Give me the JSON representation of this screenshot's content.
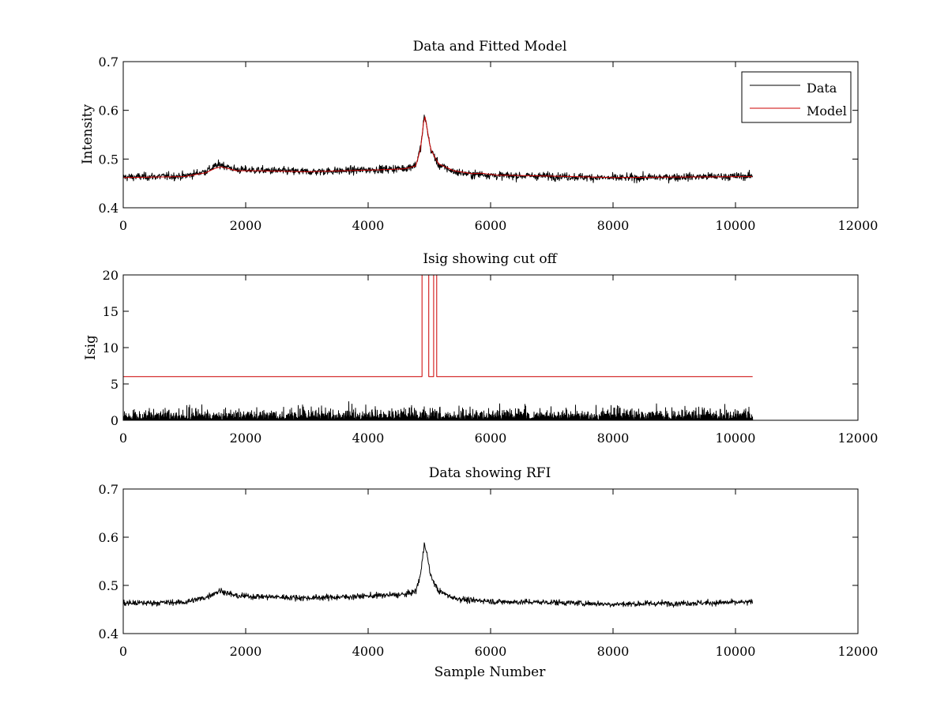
{
  "colors": {
    "data": "#000000",
    "model": "#cc0000",
    "threshold": "#cc0000",
    "background": "#ffffff"
  },
  "chart_data": [
    {
      "type": "line",
      "title": "Data and Fitted Model",
      "xlabel": "",
      "ylabel": "Intensity",
      "xlim": [
        0,
        12000
      ],
      "ylim": [
        0.4,
        0.7
      ],
      "xticks": [
        "0",
        "2000",
        "4000",
        "6000",
        "8000",
        "10000",
        "12000"
      ],
      "yticks": [
        "0.4",
        "0.5",
        "0.6",
        "0.7"
      ],
      "legend": {
        "placement": "top-right",
        "entries": [
          "Data",
          "Model"
        ]
      },
      "series": [
        {
          "name": "Data",
          "color": "#000000",
          "noise": 0.004,
          "x": [
            0,
            1000,
            1350,
            1500,
            1600,
            1700,
            1850,
            2200,
            3000,
            3600,
            4200,
            4600,
            4780,
            4860,
            4920,
            4960,
            5020,
            5150,
            5400,
            5700,
            5850,
            6100,
            7000,
            8000,
            9000,
            10280
          ],
          "values": [
            0.463,
            0.465,
            0.475,
            0.485,
            0.489,
            0.484,
            0.478,
            0.477,
            0.474,
            0.476,
            0.479,
            0.481,
            0.488,
            0.525,
            0.59,
            0.565,
            0.52,
            0.488,
            0.474,
            0.468,
            0.469,
            0.466,
            0.465,
            0.461,
            0.463,
            0.465
          ]
        },
        {
          "name": "Model",
          "color": "#cc0000",
          "noise": 0,
          "x": [
            0,
            1000,
            1350,
            1500,
            1600,
            1700,
            1850,
            2200,
            3000,
            3600,
            4200,
            4600,
            4780,
            4860,
            4920,
            4960,
            5020,
            5150,
            5400,
            5700,
            5850,
            6100,
            7000,
            8000,
            9000,
            10280
          ],
          "values": [
            0.462,
            0.464,
            0.472,
            0.481,
            0.484,
            0.481,
            0.476,
            0.476,
            0.474,
            0.476,
            0.478,
            0.48,
            0.486,
            0.523,
            0.593,
            0.565,
            0.52,
            0.49,
            0.476,
            0.47,
            0.471,
            0.467,
            0.465,
            0.462,
            0.463,
            0.464
          ]
        }
      ]
    },
    {
      "type": "line",
      "title": "Isig showing cut off",
      "xlabel": "",
      "ylabel": "Isig",
      "xlim": [
        0,
        12000
      ],
      "ylim": [
        0,
        20
      ],
      "xticks": [
        "0",
        "2000",
        "4000",
        "6000",
        "8000",
        "10000",
        "12000"
      ],
      "yticks": [
        "0",
        "5",
        "10",
        "15",
        "20"
      ],
      "series": [
        {
          "name": "",
          "kind": "abs-noise",
          "color": "#000000",
          "x_range": [
            0,
            10280
          ],
          "scale": 0.8,
          "max": 3.6
        },
        {
          "name": "",
          "kind": "step",
          "color": "#cc0000",
          "x": [
            0,
            4880,
            4880,
            4990,
            4990,
            5070,
            5070,
            5120,
            5120,
            10280
          ],
          "values": [
            6,
            6,
            20,
            20,
            6,
            6,
            20,
            20,
            6,
            6
          ]
        }
      ]
    },
    {
      "type": "line",
      "title": "Data showing RFI",
      "xlabel": "Sample Number",
      "ylabel": "",
      "xlim": [
        0,
        12000
      ],
      "ylim": [
        0.4,
        0.7
      ],
      "xticks": [
        "0",
        "2000",
        "4000",
        "6000",
        "8000",
        "10000",
        "12000"
      ],
      "yticks": [
        "0.4",
        "0.5",
        "0.6",
        "0.7"
      ],
      "series": [
        {
          "name": "",
          "color": "#000000",
          "noise": 0.003,
          "x": [
            0,
            1000,
            1350,
            1500,
            1600,
            1700,
            1850,
            2200,
            3000,
            3600,
            4200,
            4600,
            4780,
            4860,
            4920,
            4960,
            5020,
            5150,
            5400,
            5700,
            5850,
            6100,
            7000,
            8000,
            9000,
            10280
          ],
          "values": [
            0.463,
            0.465,
            0.475,
            0.485,
            0.489,
            0.484,
            0.478,
            0.477,
            0.474,
            0.476,
            0.479,
            0.481,
            0.488,
            0.525,
            0.59,
            0.565,
            0.52,
            0.488,
            0.474,
            0.468,
            0.469,
            0.466,
            0.465,
            0.461,
            0.463,
            0.465
          ]
        }
      ]
    }
  ]
}
